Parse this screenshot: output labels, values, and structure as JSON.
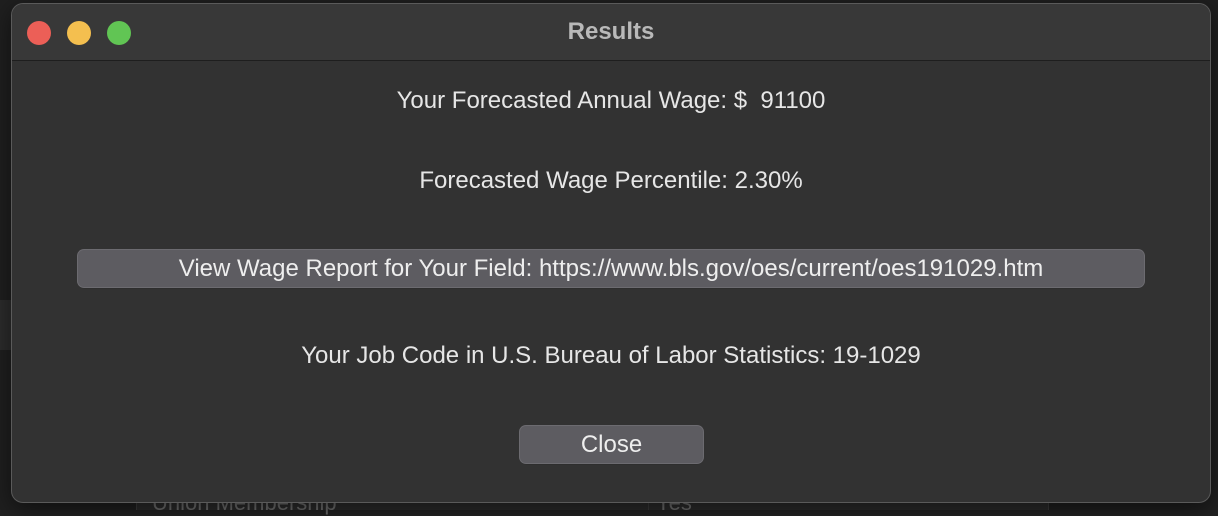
{
  "window": {
    "title": "Results"
  },
  "results": {
    "forecasted_wage_line": "Your Forecasted Annual Wage: $  91100",
    "percentile_line": "Forecasted Wage Percentile: 2.30%",
    "job_code_line": "Your Job Code in U.S. Bureau of Labor Statistics: 19-1029"
  },
  "buttons": {
    "report_label": "View Wage Report for Your Field: https://www.bls.gov/oes/current/oes191029.htm",
    "close_label": "Close"
  },
  "background": {
    "row_label": "Union Membership",
    "row_value": "Yes"
  },
  "colors": {
    "traffic_close": "#ec5f57",
    "traffic_minimize": "#f4bf4f",
    "traffic_maximize": "#61c554",
    "window_bg": "#323232",
    "button_bg": "#5d5c61"
  }
}
